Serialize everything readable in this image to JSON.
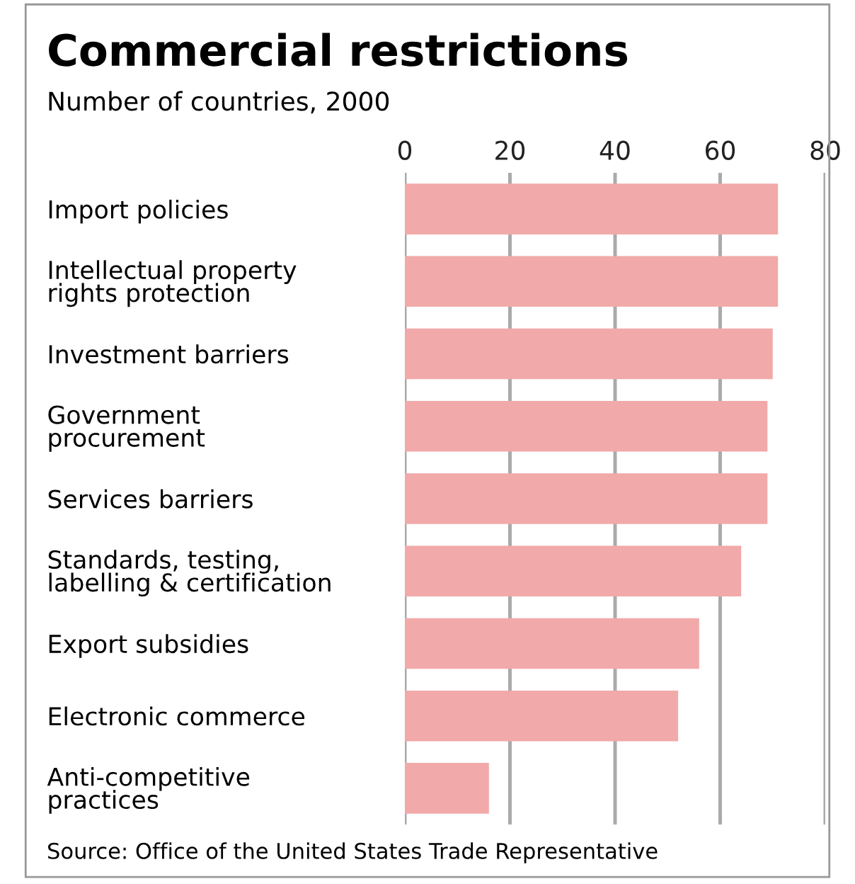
{
  "chart_data": {
    "type": "bar",
    "orientation": "horizontal",
    "title": "Commercial restrictions",
    "subtitle": "Number of countries, 2000",
    "categories": [
      "Import policies",
      "Intellectual property\nrights protection",
      "Investment barriers",
      "Government\nprocurement",
      "Services barriers",
      "Standards, testing,\nlabelling & certification",
      "Export subsidies",
      "Electronic commerce",
      "Anti-competitive\npractices"
    ],
    "values": [
      71,
      71,
      70,
      69,
      69,
      64,
      56,
      52,
      16
    ],
    "color": "#f2a9a9",
    "xlim": [
      0,
      80
    ],
    "xticks": [
      0,
      20,
      40,
      60,
      80
    ],
    "grid": "x",
    "annotations": [
      "Source: Office of the United States Trade Representative"
    ]
  }
}
